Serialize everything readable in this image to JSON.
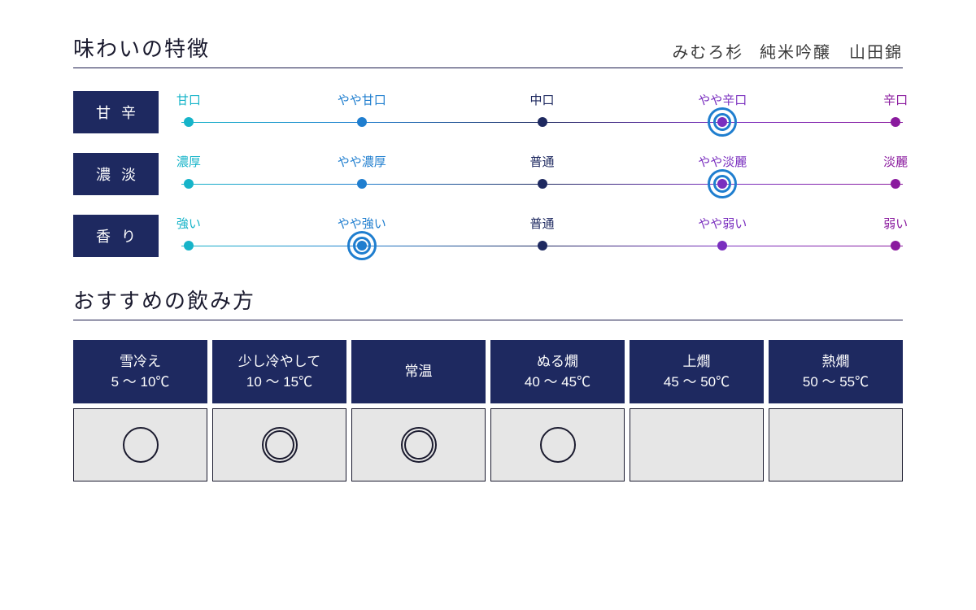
{
  "colors": {
    "navy_box": "#1e2960",
    "navy_line": "#1a1a4a",
    "serving_body_bg": "#e6e6e6",
    "ring": "#1f7ecf",
    "stops": [
      "#16b4c9",
      "#1f7ecf",
      "#1e2960",
      "#7a2fbf",
      "#8a1a9e"
    ]
  },
  "header": {
    "section_title": "味わいの特徴",
    "product_name": "みむろ杉 純米吟醸　山田錦"
  },
  "scales": [
    {
      "label": "甘辛",
      "stops": [
        "甘口",
        "やや甘口",
        "中口",
        "やや辛口",
        "辛口"
      ],
      "selected_index": 3
    },
    {
      "label": "濃淡",
      "stops": [
        "濃厚",
        "やや濃厚",
        "普通",
        "やや淡麗",
        "淡麗"
      ],
      "selected_index": 3
    },
    {
      "label": "香り",
      "stops": [
        "強い",
        "やや強い",
        "普通",
        "やや弱い",
        "弱い"
      ],
      "selected_index": 1
    }
  ],
  "serving": {
    "section_title": "おすすめの飲み方",
    "columns": [
      {
        "label": "雪冷え",
        "temp": "5 〜 10℃",
        "mark": "single"
      },
      {
        "label": "少し冷やして",
        "temp": "10 〜 15℃",
        "mark": "double"
      },
      {
        "label": "常温",
        "temp": "",
        "mark": "double"
      },
      {
        "label": "ぬる燗",
        "temp": "40 〜 45℃",
        "mark": "single"
      },
      {
        "label": "上燗",
        "temp": "45 〜 50℃",
        "mark": ""
      },
      {
        "label": "熱燗",
        "temp": "50 〜 55℃",
        "mark": ""
      }
    ]
  },
  "layout": {
    "stop_positions_pct": [
      1,
      25,
      50,
      75,
      99
    ]
  }
}
